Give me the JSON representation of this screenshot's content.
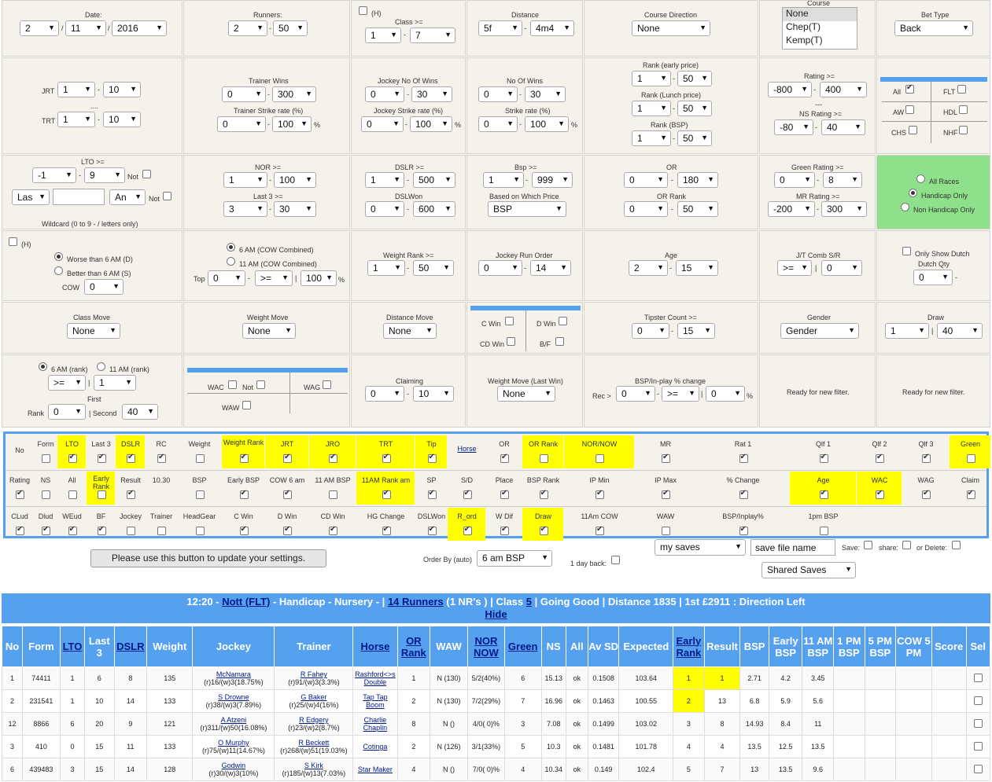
{
  "cells": {
    "r1": {
      "date": {
        "label": "Date:",
        "d": "2",
        "m": "11",
        "y": "2016"
      },
      "runners": {
        "label": "Runners:",
        "min": "2",
        "max": "50"
      },
      "class": {
        "h": "(H)",
        "label": "Class >=",
        "min": "1",
        "max": "7"
      },
      "distance": {
        "label": "Distance",
        "min": "5f",
        "max": "4m4"
      },
      "course_dir": {
        "label": "Course Direction",
        "value": "None"
      },
      "course": {
        "label": "Course",
        "options": [
          "None",
          "Chep(T)",
          "Kemp(T)"
        ]
      },
      "bet_type": {
        "label": "Bet Type",
        "value": "Back"
      }
    },
    "r2": {
      "jrt": {
        "jrt": "JRT",
        "jmin": "1",
        "jmax": "10",
        "dots": "....",
        "trt": "TRT",
        "tmin": "1",
        "tmax": "10"
      },
      "trainer": {
        "label": "Trainer Wins",
        "min": "0",
        "max": "300",
        "label2": "Trainer Strike rate (%)",
        "smin": "0",
        "smax": "100"
      },
      "jockey": {
        "label": "Jockey No Of Wins",
        "min": "0",
        "max": "30",
        "label2": "Jockey Strike rate (%)",
        "smin": "0",
        "smax": "100"
      },
      "wins": {
        "label": "No Of Wins",
        "min": "0",
        "max": "30",
        "label2": "Strike rate (%)",
        "smin": "0",
        "smax": "100"
      },
      "rank": {
        "label": "Rank (early price)",
        "min": "1",
        "max": "50",
        "label2": "Rank (Lunch price)",
        "min2": "1",
        "max2": "50",
        "label3": "Rank (BSP)",
        "min3": "1",
        "max3": "50"
      },
      "rating": {
        "label": "Rating >=",
        "min": "-800",
        "max": "400",
        "dash": "---",
        "label2": "NS Rating >=",
        "min2": "-80",
        "max2": "40"
      },
      "types": {
        "all": "All",
        "flt": "FLT",
        "aw": "AW",
        "hdl": "HDL",
        "chs": "CHS",
        "nhf": "NHF"
      }
    },
    "r3": {
      "lto": {
        "label": "LTO >=",
        "min": "-1",
        "max": "9",
        "not": "Not",
        "las": "Las",
        "an": "An",
        "not2": "Not",
        "wildcard": "Wildcard (0 to 9 - / letters only)"
      },
      "nor": {
        "label": "NOR >=",
        "min": "1",
        "max": "100",
        "label2": "Last 3 >=",
        "min2": "3",
        "max2": "30"
      },
      "dslr": {
        "label": "DSLR >=",
        "min": "1",
        "max": "500",
        "label2": "DSLWon",
        "min2": "0",
        "max2": "600"
      },
      "bsp": {
        "label": "Bsp >=",
        "min": "1",
        "max": "999",
        "label2": "Based on Which Price",
        "value": "BSP"
      },
      "or": {
        "label": "OR",
        "min": "0",
        "max": "180",
        "label2": "OR Rank",
        "min2": "0",
        "max2": "50"
      },
      "green": {
        "label": "Green Rating >=",
        "min": "0",
        "max": "8",
        "label2": "MR Rating >=",
        "min2": "-200",
        "max2": "300"
      },
      "races": {
        "all": "All Races",
        "hc": "Handicap Only",
        "nhc": "Non Handicap Only"
      }
    },
    "r4": {
      "worse": {
        "h": "(H)",
        "worse": "Worse than 6 AM (D)",
        "better": "Better than 6 AM (S)",
        "cow": "COW",
        "value": "0"
      },
      "am": {
        "am6": "6 AM (COW Combined)",
        "am11": "11 AM (COW Combined)",
        "top": "Top",
        "v1": "0",
        "op": ">=",
        "v2": "100",
        "pct": "%"
      },
      "wrank": {
        "label": "Weight Rank >=",
        "min": "1",
        "max": "50"
      },
      "jro": {
        "label": "Jockey Run Order",
        "min": "0",
        "max": "14"
      },
      "age": {
        "label": "Age",
        "min": "2",
        "max": "15"
      },
      "jt": {
        "label": "J/T Comb S/R",
        "op": ">=",
        "value": "0"
      },
      "dutch": {
        "label": "Only Show Dutch",
        "label2": "Dutch Qty",
        "value": "0"
      }
    },
    "r5": {
      "cmove": {
        "label": "Class Move",
        "value": "None"
      },
      "wmove": {
        "label": "Weight Move",
        "value": "None"
      },
      "dmove": {
        "label": "Distance Move",
        "value": "None"
      },
      "cwin": {
        "cwin": "C Win",
        "dwin": "D Win",
        "cdwin": "CD Win",
        "bf": "B/F"
      },
      "tipster": {
        "label": "Tipster Count >=",
        "min": "0",
        "max": "15"
      },
      "gender": {
        "label": "Gender",
        "value": "Gender"
      },
      "draw": {
        "label": "Draw",
        "min": "1",
        "max": "40"
      }
    },
    "r6": {
      "rank6": {
        "am6": "6 AM (rank)",
        "am11": "11 AM (rank)",
        "op": ">=",
        "value": "1",
        "first": "First",
        "rank": "Rank",
        "rv": "0",
        "second": "| Second",
        "sv": "40"
      },
      "wac": {
        "wac": "WAC",
        "not": "Not",
        "wag": "WAG",
        "waw": "WAW"
      },
      "claiming": {
        "label": "Claiming",
        "min": "0",
        "max": "10"
      },
      "wmlw": {
        "label": "Weight Move (Last Win)",
        "value": "None"
      },
      "bspinplay": {
        "label": "BSP/In-play % change",
        "rec": "Rec >",
        "v1": "0",
        "op": ">=",
        "v2": "0",
        "pct": "%"
      },
      "ready1": "Ready for new filter.",
      "ready2": "Ready for new filter."
    }
  },
  "columns": [
    [
      "No",
      "Form",
      "LTO",
      "Last 3",
      "DSLR",
      "RC",
      "Weight",
      "Weight Rank",
      "JRT",
      "JRO",
      "TRT",
      "Tip",
      "Horse",
      "OR",
      "OR Rank",
      "NOR/NOW",
      "MR",
      "Rat 1",
      "Qlf 1",
      "Qlf 2",
      "Qlf 3",
      "Green"
    ],
    [
      "Rating",
      "NS",
      "All",
      "Early Rank",
      "Result",
      "10.30",
      "BSP",
      "Early BSP",
      "COW 6 am",
      "11 AM BSP",
      "11AM Rank am",
      "SP",
      "S/D",
      "Place",
      "BSP Rank",
      "IP Min",
      "IP Max",
      "% Change",
      "Age",
      "WAC",
      "WAG",
      "Claim"
    ],
    [
      "CLud",
      "Dlud",
      "WEud",
      "BF",
      "Jockey",
      "Trainer",
      "HeadGear",
      "C Win",
      "D Win",
      "CD Win",
      "HG Change",
      "DSLWon",
      "R_ord",
      "W Dif",
      "Draw",
      "11Am COW",
      "WAW",
      "BSP/Inplay%",
      "1pm BSP"
    ]
  ],
  "controls": {
    "update_button": "Please use this button to update your settings.",
    "order_by_label": "Order By (auto)",
    "order_by": "6 am BSP",
    "day_back": "1 day back:",
    "my_saves": "my saves",
    "save_name": "save file name",
    "save": "Save:",
    "share": "share:",
    "delete": "or Delete:",
    "shared_saves": "Shared Saves"
  },
  "race": {
    "time": "12:20 -",
    "course": "Nott (FLT)",
    "type": "- Handicap - Nursery - |",
    "runners": "14 Runners",
    "nr": "(1 NR's ) | Class",
    "class": "5",
    "rest": "| Going Good | Distance 1835 | 1st £2911 : Direction Left",
    "hide": "Hide"
  },
  "results": {
    "headers": [
      "No",
      "Form",
      "LTO",
      "Last 3",
      "DSLR",
      "Weight",
      "Jockey",
      "Trainer",
      "Horse",
      "OR Rank",
      "WAW",
      "NOR NOW",
      "Green",
      "NS",
      "All",
      "Av SD",
      "Expected",
      "Early Rank",
      "Result",
      "BSP",
      "Early BSP",
      "11 AM BSP",
      "1 PM BSP",
      "5 PM BSP",
      "COW 5 PM",
      "Score",
      "Sel"
    ],
    "rows": [
      {
        "no": "1",
        "form": "74411",
        "lto": "1",
        "last3": "6",
        "dslr": "8",
        "weight": "135",
        "jockey": "McNamara",
        "jstat": "(r)16/(w)3(18.75%)",
        "trainer": "R Fahey",
        "tstat": "(r)91/(w)3(3.3%)",
        "horse": "Rashford<>s Double",
        "orrank": "1",
        "waw": "N (130)",
        "nornow": "5/2(40%)",
        "green": "6",
        "ns": "15.13",
        "all": "ok",
        "avsd": "0.1508",
        "exp": "103.64",
        "early": "1",
        "result": "1",
        "bsp": "2.71",
        "ebsp": "4.2",
        "am11": "3.45"
      },
      {
        "no": "2",
        "form": "231541",
        "lto": "1",
        "last3": "10",
        "dslr": "14",
        "weight": "133",
        "jockey": "S Drowne",
        "jstat": "(r)38/(w)3(7.89%)",
        "trainer": "G Baker",
        "tstat": "(r)25/(w)4(16%)",
        "horse": "Tap Tap Boom",
        "orrank": "2",
        "waw": "N (130)",
        "nornow": "7/2(29%)",
        "green": "7",
        "ns": "16.96",
        "all": "ok",
        "avsd": "0.1463",
        "exp": "100.55",
        "early": "2",
        "result": "13",
        "bsp": "6.8",
        "ebsp": "5.9",
        "am11": "5.6"
      },
      {
        "no": "12",
        "form": "8866",
        "lto": "6",
        "last3": "20",
        "dslr": "9",
        "weight": "121",
        "jockey": "A Atzeni",
        "jstat": "(r)311/(w)50(16.08%)",
        "trainer": "R Edgery",
        "tstat": "(r)23/(w)2(8.7%)",
        "horse": "Charlie Chaplin",
        "orrank": "8",
        "waw": "N ()",
        "nornow": "4/0( 0)%",
        "green": "3",
        "ns": "7.08",
        "all": "ok",
        "avsd": "0.1499",
        "exp": "103.02",
        "early": "3",
        "result": "8",
        "bsp": "14.93",
        "ebsp": "8.4",
        "am11": "11"
      },
      {
        "no": "3",
        "form": "410",
        "lto": "0",
        "last3": "15",
        "dslr": "11",
        "weight": "133",
        "jockey": "O Murphy",
        "jstat": "(r)75/(w)11(14.67%)",
        "trainer": "R Beckett",
        "tstat": "(r)268/(w)51(19.03%)",
        "horse": "Cotinga",
        "orrank": "2",
        "waw": "N (126)",
        "nornow": "3/1(33%)",
        "green": "5",
        "ns": "10.3",
        "all": "ok",
        "avsd": "0.1481",
        "exp": "101.78",
        "early": "4",
        "result": "4",
        "bsp": "13.5",
        "ebsp": "12.5",
        "am11": "13.5"
      },
      {
        "no": "6",
        "form": "439483",
        "lto": "3",
        "last3": "15",
        "dslr": "14",
        "weight": "128",
        "jockey": "Godwin",
        "jstat": "(r)30/(w)3(10%)",
        "trainer": "S Kirk",
        "tstat": "(r)185/(w)13(7.03%)",
        "horse": "Star Maker",
        "orrank": "4",
        "waw": "N ()",
        "nornow": "7/0( 0)%",
        "green": "4",
        "ns": "10.34",
        "all": "ok",
        "avsd": "0.149",
        "exp": "102.4",
        "early": "5",
        "result": "7",
        "bsp": "13",
        "ebsp": "13.5",
        "am11": "9.6"
      }
    ]
  }
}
